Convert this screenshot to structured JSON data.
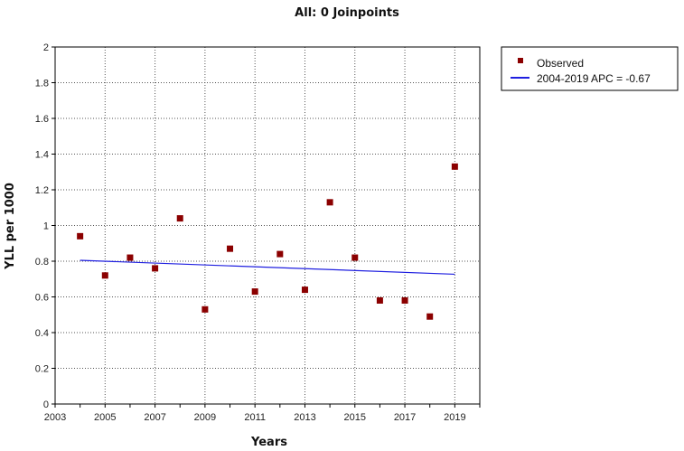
{
  "chart_data": {
    "type": "scatter",
    "title": "All: 0 Joinpoints",
    "xlabel": "Years",
    "ylabel": "YLL per 1000",
    "xlim": [
      2003,
      2020
    ],
    "ylim": [
      0,
      2
    ],
    "x_ticks": [
      "2003",
      "2005",
      "2007",
      "2009",
      "2011",
      "2013",
      "2015",
      "2017",
      "2019"
    ],
    "y_ticks": [
      "0",
      "0.2",
      "0.4",
      "0.6",
      "0.8",
      "1",
      "1.2",
      "1.4",
      "1.6",
      "1.8",
      "2"
    ],
    "grid": true,
    "legend_position": "right",
    "series": [
      {
        "name": "Observed",
        "kind": "points",
        "color": "#8b0000",
        "x": [
          2004,
          2005,
          2006,
          2007,
          2008,
          2009,
          2010,
          2011,
          2012,
          2013,
          2014,
          2015,
          2016,
          2017,
          2018,
          2019
        ],
        "y": [
          0.94,
          0.72,
          0.82,
          0.76,
          1.04,
          0.53,
          0.87,
          0.63,
          0.84,
          0.64,
          1.13,
          0.82,
          0.58,
          0.58,
          0.49,
          1.33
        ]
      },
      {
        "name": "2004-2019 APC  = -0.67",
        "kind": "line",
        "color": "#1f1fe0",
        "x": [
          2004,
          2019
        ],
        "y": [
          0.805,
          0.727
        ]
      }
    ]
  }
}
